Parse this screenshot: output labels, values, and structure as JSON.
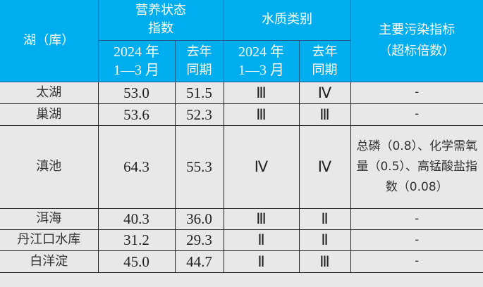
{
  "header": {
    "lake": "湖（库）",
    "trophic": "营养状态\n指数",
    "water_class": "水质类别",
    "pollutants": "主要污染指标\n（超标倍数）",
    "current_period": "2024 年\n1—3 月",
    "last_year": "去年\n同期"
  },
  "rows": [
    {
      "name": "太湖",
      "tsi_2024": "53.0",
      "tsi_last": "51.5",
      "class_2024": "Ⅲ",
      "class_last": "Ⅳ",
      "pollutants": "-"
    },
    {
      "name": "巢湖",
      "tsi_2024": "53.6",
      "tsi_last": "52.3",
      "class_2024": "Ⅲ",
      "class_last": "Ⅲ",
      "pollutants": "-"
    },
    {
      "name": "滇池",
      "tsi_2024": "64.3",
      "tsi_last": "55.3",
      "class_2024": "Ⅳ",
      "class_last": "Ⅳ",
      "pollutants": "总磷（0.8）、化学需氧量（0.5）、高锰酸盐指数（0.08）"
    },
    {
      "name": "洱海",
      "tsi_2024": "40.3",
      "tsi_last": "36.0",
      "class_2024": "Ⅲ",
      "class_last": "Ⅱ",
      "pollutants": "-"
    },
    {
      "name": "丹江口水库",
      "tsi_2024": "31.2",
      "tsi_last": "29.3",
      "class_2024": "Ⅱ",
      "class_last": "Ⅱ",
      "pollutants": "-"
    },
    {
      "name": "白洋淀",
      "tsi_2024": "45.0",
      "tsi_last": "44.7",
      "class_2024": "Ⅱ",
      "class_last": "Ⅲ",
      "pollutants": "-"
    }
  ],
  "colors": {
    "header_bg": "#00adef",
    "body_bg": "#e8e8e8"
  }
}
